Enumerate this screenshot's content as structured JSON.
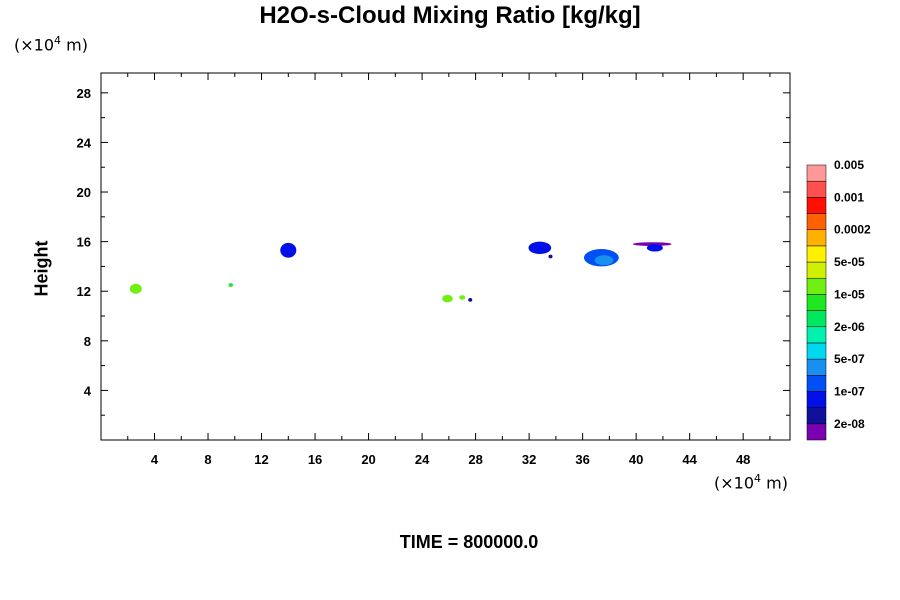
{
  "chart_data": {
    "type": "heatmap",
    "title": "H2O-s-Cloud Mixing Ratio [kg/kg]",
    "ylabel": "Height",
    "x_unit": {
      "prefix": "(×10",
      "exp": "4",
      "suffix": " m)"
    },
    "y_unit": {
      "prefix": "(×10",
      "exp": "4",
      "suffix": " m)"
    },
    "xlim": [
      0,
      51.5
    ],
    "ylim": [
      0,
      29.6
    ],
    "x_ticks": [
      "4",
      "8",
      "12",
      "16",
      "20",
      "24",
      "28",
      "32",
      "36",
      "40",
      "44",
      "48"
    ],
    "y_ticks": [
      "4",
      "8",
      "12",
      "16",
      "20",
      "24",
      "28"
    ],
    "colorbar": {
      "colors": [
        "#7b00b0",
        "#10109a",
        "#0010e6",
        "#0050f5",
        "#1890f0",
        "#00d8f0",
        "#00f0b0",
        "#00e860",
        "#20e820",
        "#70f010",
        "#d0f000",
        "#fff000",
        "#ffb000",
        "#ff6000",
        "#ff1000",
        "#ff5050",
        "#ff9999"
      ],
      "labels": [
        "2e-08",
        "1e-07",
        "5e-07",
        "2e-06",
        "1e-05",
        "5e-05",
        "0.0002",
        "0.001",
        "0.005"
      ]
    },
    "clouds": [
      {
        "x": 2.6,
        "y": 12.2,
        "w": 0.9,
        "h": 0.8,
        "color": "#70f010"
      },
      {
        "x": 9.7,
        "y": 12.5,
        "w": 0.35,
        "h": 0.3,
        "color": "#20e820"
      },
      {
        "x": 14.0,
        "y": 15.3,
        "w": 1.2,
        "h": 1.2,
        "color": "#0010e6"
      },
      {
        "x": 25.9,
        "y": 11.4,
        "w": 0.8,
        "h": 0.6,
        "color": "#70f010"
      },
      {
        "x": 27.0,
        "y": 11.5,
        "w": 0.45,
        "h": 0.35,
        "color": "#70f010"
      },
      {
        "x": 27.6,
        "y": 11.3,
        "w": 0.3,
        "h": 0.3,
        "color": "#10109a"
      },
      {
        "x": 32.8,
        "y": 15.5,
        "w": 1.7,
        "h": 1.0,
        "color": "#0010e6"
      },
      {
        "x": 33.6,
        "y": 14.8,
        "w": 0.3,
        "h": 0.3,
        "color": "#10109a"
      },
      {
        "x": 37.4,
        "y": 14.7,
        "w": 2.6,
        "h": 1.4,
        "color": "#0050f5"
      },
      {
        "x": 37.6,
        "y": 14.5,
        "w": 1.4,
        "h": 0.8,
        "color": "#1890f0"
      },
      {
        "x": 41.2,
        "y": 15.8,
        "w": 2.9,
        "h": 0.3,
        "color": "#7b00b0"
      },
      {
        "x": 41.4,
        "y": 15.5,
        "w": 1.2,
        "h": 0.6,
        "color": "#0010e6"
      }
    ],
    "time_label": "TIME = 800000.0"
  }
}
